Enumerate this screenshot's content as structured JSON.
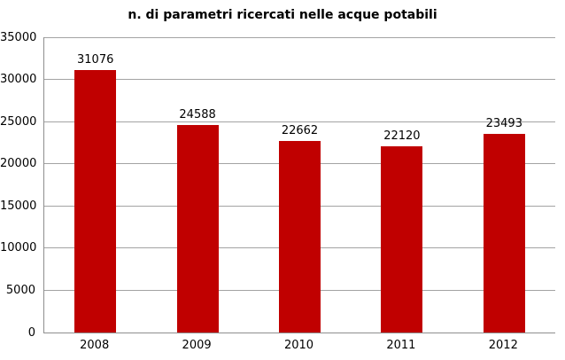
{
  "chart_data": {
    "type": "bar",
    "title": "n. di parametri ricercati nelle acque potabili",
    "categories": [
      "2008",
      "2009",
      "2010",
      "2011",
      "2012"
    ],
    "values": [
      31076,
      24588,
      22662,
      22120,
      23493
    ],
    "data_labels": [
      "31076",
      "24588",
      "22662",
      "22120",
      "23493"
    ],
    "xlabel": "",
    "ylabel": "",
    "ylim": [
      0,
      35000
    ],
    "ytick_step": 5000,
    "ytick_labels": [
      "0",
      "5000",
      "10000",
      "15000",
      "20000",
      "25000",
      "30000",
      "35000"
    ],
    "grid": "horizontal",
    "legend": "none",
    "colors": {
      "bar": "#C00000",
      "gridline": "#A3A3A3",
      "axis": "#8E8E8E",
      "background": "#FFFFFF",
      "text": "#000000"
    }
  }
}
